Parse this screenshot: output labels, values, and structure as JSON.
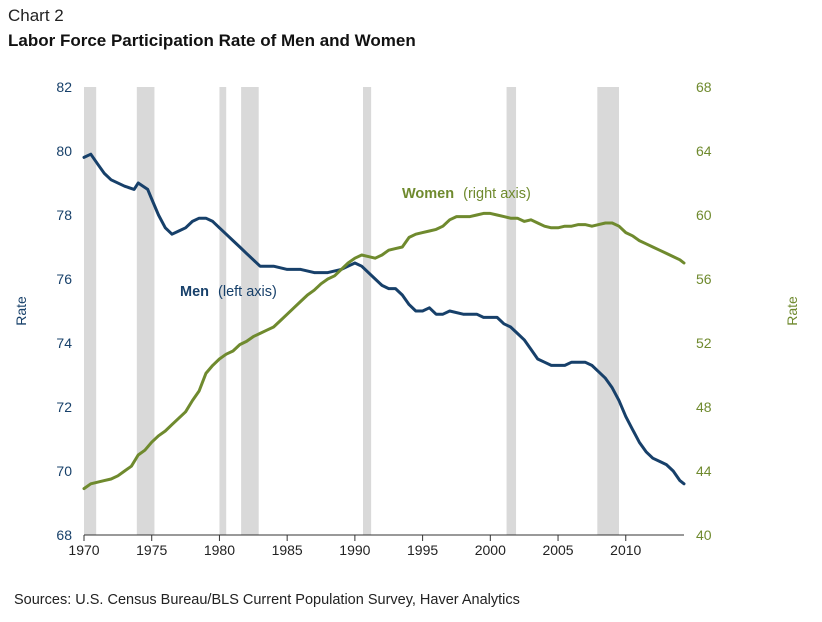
{
  "header": {
    "label": "Chart 2",
    "title": "Labor Force Participation Rate of Men and Women"
  },
  "footer": {
    "source": "Sources: U.S. Census Bureau/BLS Current Population Survey, Haver Analytics"
  },
  "colors": {
    "men": "#17406a",
    "women": "#6f8a2e",
    "recession": "#d9d9d9",
    "axis": "#333333"
  },
  "chart_data": {
    "type": "line",
    "title": "Labor Force Participation Rate of Men and Women",
    "x_ticks": [
      1970,
      1975,
      1980,
      1985,
      1990,
      1995,
      2000,
      2005,
      2010
    ],
    "xlim": [
      1970,
      2014.3
    ],
    "left_axis": {
      "label": "Rate",
      "lim": [
        68,
        82
      ],
      "ticks": [
        68,
        70,
        72,
        74,
        76,
        78,
        80,
        82
      ]
    },
    "right_axis": {
      "label": "Rate",
      "lim": [
        40,
        68
      ],
      "ticks": [
        40,
        44,
        48,
        52,
        56,
        60,
        64,
        68
      ]
    },
    "recessions": [
      [
        1970,
        1970.9
      ],
      [
        1973.9,
        1975.2
      ],
      [
        1980.0,
        1980.5
      ],
      [
        1981.6,
        1982.9
      ],
      [
        1990.6,
        1991.2
      ],
      [
        2001.2,
        2001.9
      ],
      [
        2007.9,
        2009.5
      ]
    ],
    "series": [
      {
        "name": "Men",
        "axis_note": "(left axis)",
        "axis": "left",
        "points": [
          [
            1970,
            79.8
          ],
          [
            1970.5,
            79.9
          ],
          [
            1971,
            79.6
          ],
          [
            1971.5,
            79.3
          ],
          [
            1972,
            79.1
          ],
          [
            1973,
            78.9
          ],
          [
            1973.7,
            78.8
          ],
          [
            1974,
            79.0
          ],
          [
            1974.7,
            78.8
          ],
          [
            1975,
            78.5
          ],
          [
            1975.5,
            78.0
          ],
          [
            1976,
            77.6
          ],
          [
            1976.5,
            77.4
          ],
          [
            1977,
            77.5
          ],
          [
            1977.5,
            77.6
          ],
          [
            1978,
            77.8
          ],
          [
            1978.5,
            77.9
          ],
          [
            1979,
            77.9
          ],
          [
            1979.5,
            77.8
          ],
          [
            1980,
            77.6
          ],
          [
            1980.5,
            77.4
          ],
          [
            1981,
            77.2
          ],
          [
            1981.5,
            77.0
          ],
          [
            1982,
            76.8
          ],
          [
            1982.5,
            76.6
          ],
          [
            1983,
            76.4
          ],
          [
            1983.5,
            76.4
          ],
          [
            1984,
            76.4
          ],
          [
            1985,
            76.3
          ],
          [
            1986,
            76.3
          ],
          [
            1987,
            76.2
          ],
          [
            1988,
            76.2
          ],
          [
            1989,
            76.3
          ],
          [
            1989.5,
            76.4
          ],
          [
            1990,
            76.5
          ],
          [
            1990.5,
            76.4
          ],
          [
            1991,
            76.2
          ],
          [
            1991.5,
            76.0
          ],
          [
            1992,
            75.8
          ],
          [
            1992.5,
            75.7
          ],
          [
            1993,
            75.7
          ],
          [
            1993.5,
            75.5
          ],
          [
            1994,
            75.2
          ],
          [
            1994.5,
            75.0
          ],
          [
            1995,
            75.0
          ],
          [
            1995.5,
            75.1
          ],
          [
            1996,
            74.9
          ],
          [
            1996.5,
            74.9
          ],
          [
            1997,
            75.0
          ],
          [
            1998,
            74.9
          ],
          [
            1999,
            74.9
          ],
          [
            1999.5,
            74.8
          ],
          [
            2000,
            74.8
          ],
          [
            2000.5,
            74.8
          ],
          [
            2001,
            74.6
          ],
          [
            2001.5,
            74.5
          ],
          [
            2002,
            74.3
          ],
          [
            2002.5,
            74.1
          ],
          [
            2003,
            73.8
          ],
          [
            2003.5,
            73.5
          ],
          [
            2004,
            73.4
          ],
          [
            2004.5,
            73.3
          ],
          [
            2005,
            73.3
          ],
          [
            2005.5,
            73.3
          ],
          [
            2006,
            73.4
          ],
          [
            2006.5,
            73.4
          ],
          [
            2007,
            73.4
          ],
          [
            2007.5,
            73.3
          ],
          [
            2008,
            73.1
          ],
          [
            2008.5,
            72.9
          ],
          [
            2009,
            72.6
          ],
          [
            2009.5,
            72.2
          ],
          [
            2010,
            71.7
          ],
          [
            2010.5,
            71.3
          ],
          [
            2011,
            70.9
          ],
          [
            2011.5,
            70.6
          ],
          [
            2012,
            70.4
          ],
          [
            2012.5,
            70.3
          ],
          [
            2013,
            70.2
          ],
          [
            2013.5,
            70.0
          ],
          [
            2014,
            69.7
          ],
          [
            2014.3,
            69.6
          ]
        ]
      },
      {
        "name": "Women",
        "axis_note": "(right axis)",
        "axis": "right",
        "points": [
          [
            1970,
            42.9
          ],
          [
            1970.5,
            43.2
          ],
          [
            1971,
            43.3
          ],
          [
            1971.5,
            43.4
          ],
          [
            1972,
            43.5
          ],
          [
            1972.5,
            43.7
          ],
          [
            1973,
            44.0
          ],
          [
            1973.5,
            44.3
          ],
          [
            1974,
            45.0
          ],
          [
            1974.5,
            45.3
          ],
          [
            1975,
            45.8
          ],
          [
            1975.5,
            46.2
          ],
          [
            1976,
            46.5
          ],
          [
            1976.5,
            46.9
          ],
          [
            1977,
            47.3
          ],
          [
            1977.5,
            47.7
          ],
          [
            1978,
            48.4
          ],
          [
            1978.5,
            49.0
          ],
          [
            1979,
            50.1
          ],
          [
            1979.5,
            50.6
          ],
          [
            1980,
            51.0
          ],
          [
            1980.5,
            51.3
          ],
          [
            1981,
            51.5
          ],
          [
            1981.5,
            51.9
          ],
          [
            1982,
            52.1
          ],
          [
            1982.5,
            52.4
          ],
          [
            1983,
            52.6
          ],
          [
            1983.5,
            52.8
          ],
          [
            1984,
            53.0
          ],
          [
            1984.5,
            53.4
          ],
          [
            1985,
            53.8
          ],
          [
            1985.5,
            54.2
          ],
          [
            1986,
            54.6
          ],
          [
            1986.5,
            55.0
          ],
          [
            1987,
            55.3
          ],
          [
            1987.5,
            55.7
          ],
          [
            1988,
            56.0
          ],
          [
            1988.5,
            56.2
          ],
          [
            1989,
            56.6
          ],
          [
            1989.5,
            57.0
          ],
          [
            1990,
            57.3
          ],
          [
            1990.5,
            57.5
          ],
          [
            1991,
            57.4
          ],
          [
            1991.5,
            57.3
          ],
          [
            1992,
            57.5
          ],
          [
            1992.5,
            57.8
          ],
          [
            1993,
            57.9
          ],
          [
            1993.5,
            58.0
          ],
          [
            1994,
            58.6
          ],
          [
            1994.5,
            58.8
          ],
          [
            1995,
            58.9
          ],
          [
            1995.5,
            59.0
          ],
          [
            1996,
            59.1
          ],
          [
            1996.5,
            59.3
          ],
          [
            1997,
            59.7
          ],
          [
            1997.5,
            59.9
          ],
          [
            1998,
            59.9
          ],
          [
            1998.5,
            59.9
          ],
          [
            1999,
            60.0
          ],
          [
            1999.5,
            60.1
          ],
          [
            2000,
            60.1
          ],
          [
            2000.5,
            60.0
          ],
          [
            2001,
            59.9
          ],
          [
            2001.5,
            59.8
          ],
          [
            2002,
            59.8
          ],
          [
            2002.5,
            59.6
          ],
          [
            2003,
            59.7
          ],
          [
            2003.5,
            59.5
          ],
          [
            2004,
            59.3
          ],
          [
            2004.5,
            59.2
          ],
          [
            2005,
            59.2
          ],
          [
            2005.5,
            59.3
          ],
          [
            2006,
            59.3
          ],
          [
            2006.5,
            59.4
          ],
          [
            2007,
            59.4
          ],
          [
            2007.5,
            59.3
          ],
          [
            2008,
            59.4
          ],
          [
            2008.5,
            59.5
          ],
          [
            2009,
            59.5
          ],
          [
            2009.5,
            59.3
          ],
          [
            2010,
            58.9
          ],
          [
            2010.5,
            58.7
          ],
          [
            2011,
            58.4
          ],
          [
            2011.5,
            58.2
          ],
          [
            2012,
            58.0
          ],
          [
            2012.5,
            57.8
          ],
          [
            2013,
            57.6
          ],
          [
            2013.5,
            57.4
          ],
          [
            2014,
            57.2
          ],
          [
            2014.3,
            57.0
          ]
        ]
      }
    ]
  }
}
